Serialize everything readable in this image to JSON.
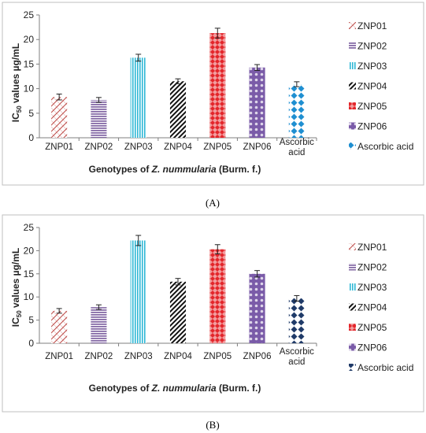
{
  "colors": {
    "ZNP01": "#c0504d",
    "ZNP02": "#8064a2",
    "ZNP03": "#2fb8d6",
    "ZNP04": "#111111",
    "ZNP05": "#e3262b",
    "ZNP06": "#7a5ba8",
    "Ascorbic acid A": "#1f8fd1",
    "Ascorbic acid B": "#1f3a68"
  },
  "chart_data": [
    {
      "type": "bar",
      "panel_label": "(A)",
      "categories": [
        "ZNP01",
        "ZNP02",
        "ZNP03",
        "ZNP04",
        "ZNP05",
        "ZNP06",
        "Ascorbic acid"
      ],
      "values": [
        8.3,
        7.7,
        16.3,
        11.5,
        21.3,
        14.3,
        10.9
      ],
      "errors": [
        0.6,
        0.5,
        0.7,
        0.5,
        1.0,
        0.6,
        0.5
      ],
      "ylabel": "IC50 values µg/mL",
      "ylabel_main": "IC",
      "ylabel_sub": "50",
      "ylabel_rest": " values µg/mL",
      "xlabel_pre": "Genotypes of ",
      "xlabel_italic": "Z. nummularia",
      "xlabel_post": " (Burm. f.)",
      "ylim": [
        0,
        25
      ],
      "yticks": [
        0,
        5,
        10,
        15,
        20,
        25
      ],
      "grid": false,
      "legend_position": "right",
      "legend": [
        "ZNP01",
        "ZNP02",
        "ZNP03",
        "ZNP04",
        "ZNP05",
        "ZNP06",
        "Ascorbic acid"
      ],
      "patterns": [
        "cross",
        "hlines",
        "vlines",
        "diag",
        "lattice",
        "circles",
        "diamonds"
      ],
      "color_keys": [
        "ZNP01",
        "ZNP02",
        "ZNP03",
        "ZNP04",
        "ZNP05",
        "ZNP06",
        "Ascorbic acid A"
      ]
    },
    {
      "type": "bar",
      "panel_label": "(B)",
      "categories": [
        "ZNP01",
        "ZNP02",
        "ZNP03",
        "ZNP04",
        "ZNP05",
        "ZNP06",
        "Ascorbic acid"
      ],
      "values": [
        7.0,
        7.8,
        22.2,
        13.3,
        20.3,
        15.0,
        9.7
      ],
      "errors": [
        0.5,
        0.5,
        1.1,
        0.7,
        1.0,
        0.7,
        0.6
      ],
      "ylabel": "IC50 values µg/mL",
      "ylabel_main": "IC",
      "ylabel_sub": "50",
      "ylabel_rest": " values µg/mL",
      "xlabel_pre": "Genotypes of ",
      "xlabel_italic": "Z. nummularia",
      "xlabel_post": " (Burm. f.)",
      "ylim": [
        0,
        25
      ],
      "yticks": [
        0,
        5,
        10,
        15,
        20,
        25
      ],
      "grid": false,
      "legend_position": "right",
      "legend": [
        "ZNP01",
        "ZNP02",
        "ZNP03",
        "ZNP04",
        "ZNP05",
        "ZNP06",
        "Ascorbic acid"
      ],
      "patterns": [
        "cross",
        "hlines",
        "vlines",
        "diag",
        "lattice",
        "circles",
        "diamonds"
      ],
      "color_keys": [
        "ZNP01",
        "ZNP02",
        "ZNP03",
        "ZNP04",
        "ZNP05",
        "ZNP06",
        "Ascorbic acid B"
      ]
    }
  ]
}
